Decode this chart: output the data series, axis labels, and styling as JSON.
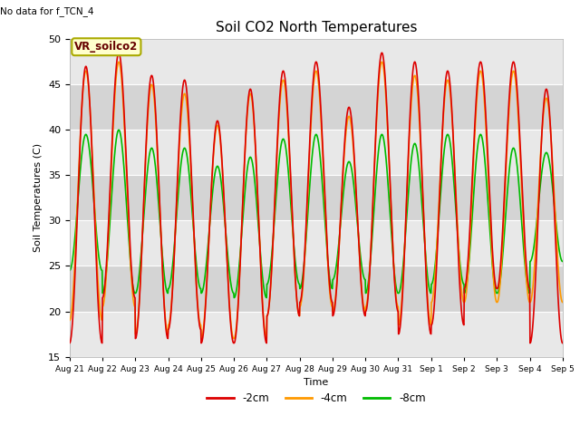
{
  "title": "Soil CO2 North Temperatures",
  "top_left_text": "No data for f_TCN_4",
  "box_label": "VR_soilco2",
  "ylabel": "Soil Temperatures (C)",
  "xlabel": "Time",
  "ylim": [
    15,
    50
  ],
  "yticks": [
    15,
    20,
    25,
    30,
    35,
    40,
    45,
    50
  ],
  "line_colors": {
    "-2cm": "#dd0000",
    "-4cm": "#ff9900",
    "-8cm": "#00bb00"
  },
  "legend_labels": [
    "-2cm",
    "-4cm",
    "-8cm"
  ],
  "background_color": "#ffffff",
  "plot_bg_color": "#e8e8e8",
  "band_color": "#d4d4d4",
  "n_days": 15,
  "date_labels": [
    "Aug 21",
    "Aug 22",
    "Aug 23",
    "Aug 24",
    "Aug 25",
    "Aug 26",
    "Aug 27",
    "Aug 28",
    "Aug 29",
    "Aug 30",
    "Aug 31",
    "Sep 1",
    "Sep 2",
    "Sep 3",
    "Sep 4",
    "Sep 5"
  ],
  "peaks_2cm": [
    47.0,
    48.5,
    46.0,
    45.5,
    41.0,
    44.5,
    46.5,
    47.5,
    42.5,
    48.5,
    47.5,
    46.5,
    47.5,
    47.5,
    44.5
  ],
  "troughs_2cm": [
    16.5,
    21.5,
    17.0,
    18.0,
    16.5,
    16.5,
    19.5,
    21.0,
    19.5,
    20.0,
    17.5,
    18.5,
    22.5,
    22.5,
    16.5
  ],
  "peaks_4cm": [
    46.5,
    47.5,
    45.0,
    44.0,
    40.5,
    44.0,
    45.5,
    46.5,
    41.5,
    47.5,
    46.0,
    45.5,
    46.5,
    46.5,
    43.5
  ],
  "troughs_4cm": [
    19.0,
    20.5,
    17.5,
    18.5,
    17.0,
    17.0,
    19.5,
    20.5,
    20.0,
    20.5,
    18.5,
    21.0,
    21.0,
    21.0,
    21.0
  ],
  "peaks_8cm": [
    39.5,
    40.0,
    38.0,
    38.0,
    36.0,
    37.0,
    39.0,
    39.5,
    36.5,
    39.5,
    38.5,
    39.5,
    39.5,
    38.0,
    37.5
  ],
  "troughs_8cm": [
    24.5,
    22.0,
    22.0,
    22.5,
    22.0,
    21.5,
    23.0,
    22.5,
    23.5,
    22.0,
    22.0,
    23.0,
    22.0,
    22.0,
    25.5
  ]
}
